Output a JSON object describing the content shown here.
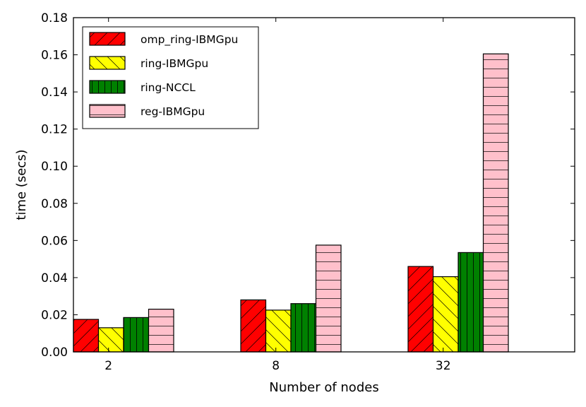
{
  "chart_data": {
    "type": "bar",
    "title": "",
    "xlabel": "Number of nodes",
    "ylabel": "time (secs)",
    "categories": [
      "2",
      "8",
      "32"
    ],
    "ylim": [
      0,
      0.18
    ],
    "yticks": [
      "0.00",
      "0.02",
      "0.04",
      "0.06",
      "0.08",
      "0.10",
      "0.12",
      "0.14",
      "0.16",
      "0.18"
    ],
    "grid": false,
    "legend_position": "top-left",
    "series": [
      {
        "name": "omp_ring-IBMGpu",
        "color": "#ff0000",
        "hatch": "diagonal-right",
        "values": [
          0.0175,
          0.028,
          0.046
        ]
      },
      {
        "name": "ring-IBMGpu",
        "color": "#ffff00",
        "hatch": "diagonal-left",
        "values": [
          0.013,
          0.0225,
          0.0405
        ]
      },
      {
        "name": "ring-NCCL",
        "color": "#008000",
        "hatch": "vertical",
        "values": [
          0.0185,
          0.026,
          0.0535
        ]
      },
      {
        "name": "reg-IBMGpu",
        "color": "#ffc0cb",
        "hatch": "horizontal",
        "values": [
          0.023,
          0.0575,
          0.1605
        ]
      }
    ]
  }
}
